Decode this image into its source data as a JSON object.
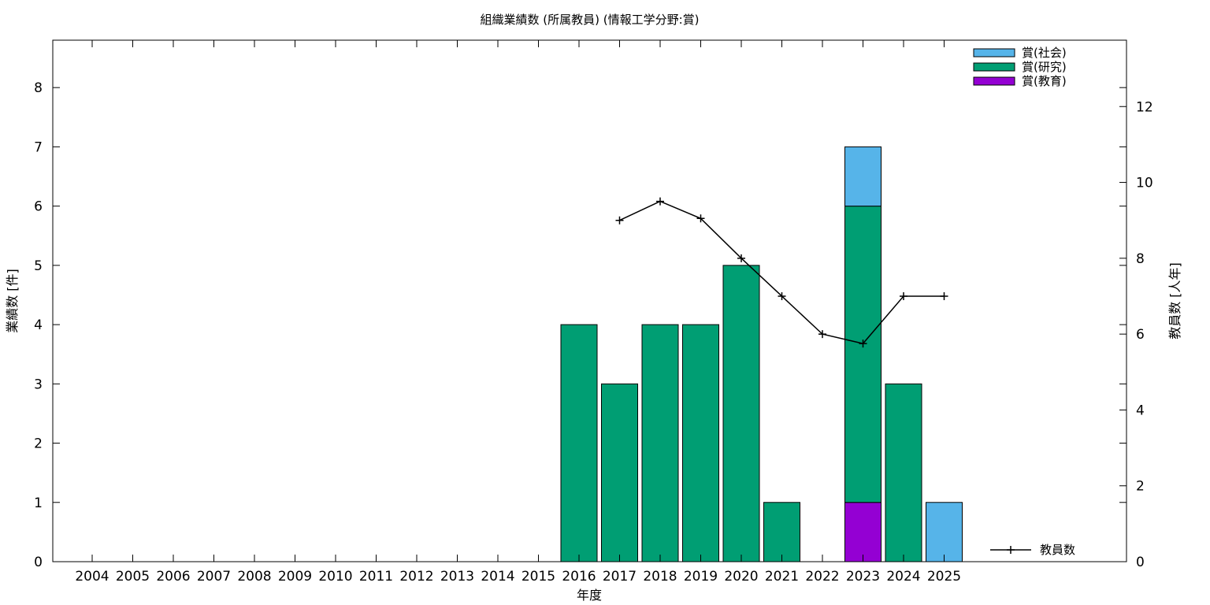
{
  "chart_data": {
    "type": "bar",
    "title": "組織業績数 (所属教員) (情報工学分野:賞)",
    "xlabel": "年度",
    "ylabel": "業績数 [件]",
    "y2label": "教員数 [人年]",
    "ylim": [
      0,
      8.8
    ],
    "y2lim": [
      0,
      13.75
    ],
    "yticks": [
      0,
      1,
      2,
      3,
      4,
      5,
      6,
      7,
      8
    ],
    "y2ticks": [
      0,
      2,
      4,
      6,
      8,
      10,
      12
    ],
    "grid": false,
    "legend_position": "top-right",
    "categories": [
      "2004",
      "2005",
      "2006",
      "2007",
      "2008",
      "2009",
      "2010",
      "2011",
      "2012",
      "2013",
      "2014",
      "2015",
      "2016",
      "2017",
      "2018",
      "2019",
      "2020",
      "2021",
      "2022",
      "2023",
      "2024",
      "2025"
    ],
    "series": [
      {
        "name": "賞(教育)",
        "color": "#9400d3",
        "values": [
          0,
          0,
          0,
          0,
          0,
          0,
          0,
          0,
          0,
          0,
          0,
          0,
          0,
          0,
          0,
          0,
          0,
          0,
          0,
          1,
          0,
          0
        ]
      },
      {
        "name": "賞(研究)",
        "color": "#009e73",
        "values": [
          0,
          0,
          0,
          0,
          0,
          0,
          0,
          0,
          0,
          0,
          0,
          0,
          4,
          3,
          4,
          4,
          5,
          1,
          0,
          5,
          3,
          0
        ]
      },
      {
        "name": "賞(社会)",
        "color": "#56b4e9",
        "values": [
          0,
          0,
          0,
          0,
          0,
          0,
          0,
          0,
          0,
          0,
          0,
          0,
          0,
          0,
          0,
          0,
          0,
          0,
          0,
          1,
          0,
          1
        ]
      }
    ],
    "line_series": {
      "name": "教員数",
      "color": "#000000",
      "axis": "right",
      "x": [
        "2017",
        "2018",
        "2019",
        "2020",
        "2021",
        "2022",
        "2023",
        "2024",
        "2025"
      ],
      "values": [
        9.0,
        9.5,
        9.05,
        8.0,
        7.0,
        6.0,
        5.75,
        7.0,
        7.0
      ]
    }
  }
}
